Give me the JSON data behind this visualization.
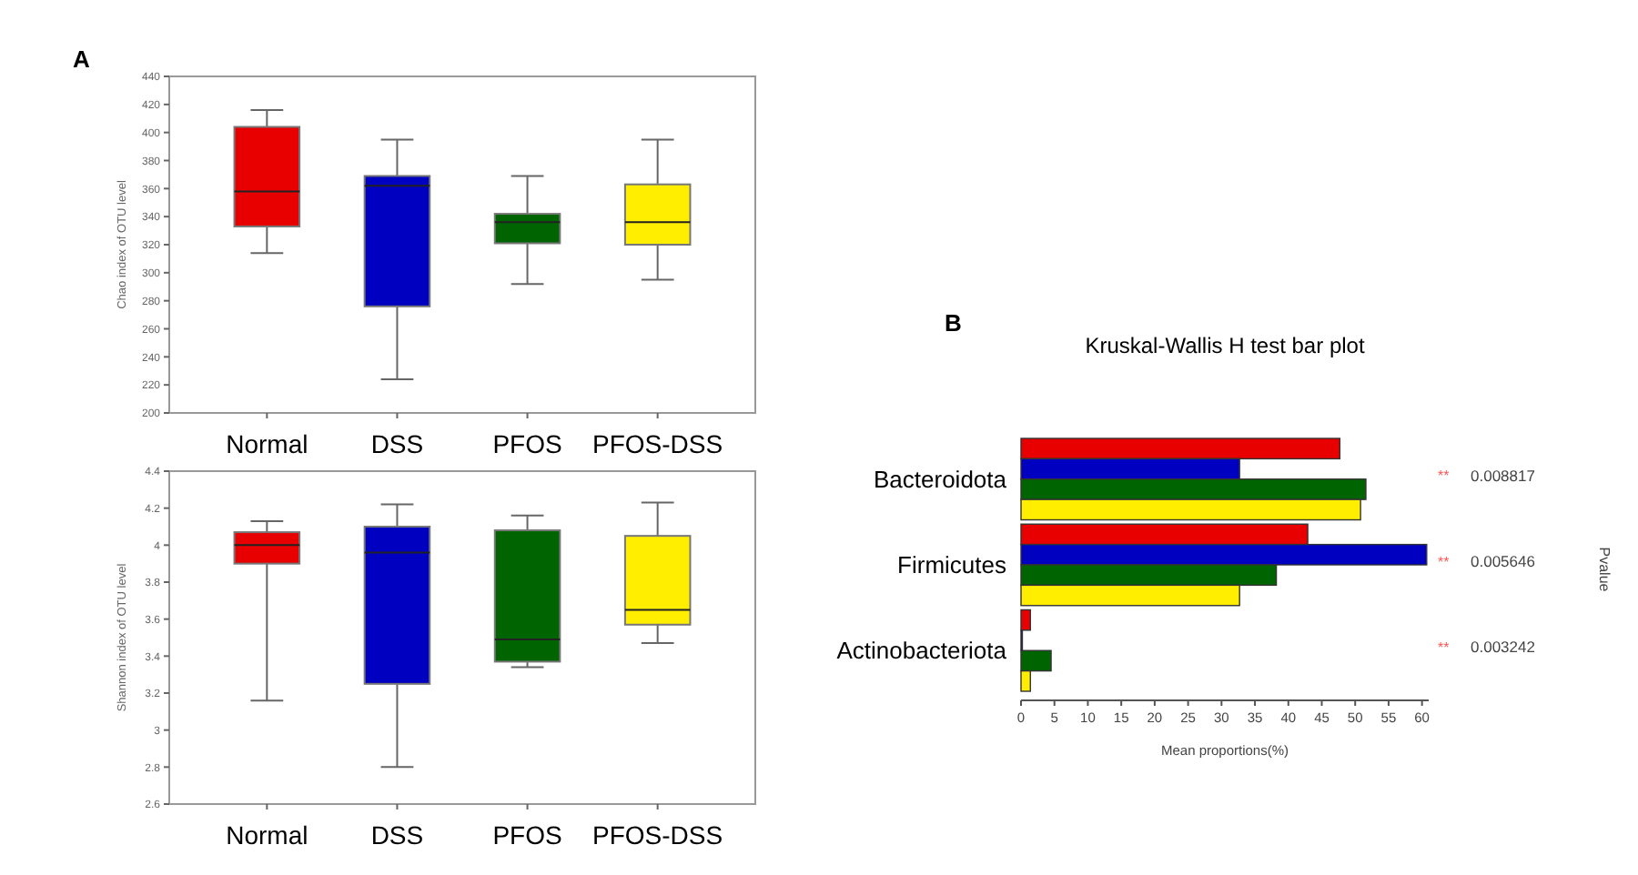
{
  "chart_data": [
    {
      "type": "box",
      "title": "A",
      "ylabel": "Chao index of OTU level",
      "categories": [
        "Normal",
        "DSS",
        "PFOS",
        "PFOS-DSS"
      ],
      "colors": [
        "#e80000",
        "#0000c0",
        "#006400",
        "#ffee00"
      ],
      "boxes": [
        {
          "low": 314,
          "q1": 333,
          "median": 358,
          "q3": 404,
          "high": 416
        },
        {
          "low": 224,
          "q1": 276,
          "median": 362,
          "q3": 369,
          "high": 395
        },
        {
          "low": 292,
          "q1": 321,
          "median": 336,
          "q3": 342,
          "high": 369
        },
        {
          "low": 295,
          "q1": 320,
          "median": 336,
          "q3": 363,
          "high": 395
        }
      ],
      "ylim": [
        200,
        440
      ],
      "yticks": [
        200,
        220,
        240,
        260,
        280,
        300,
        320,
        340,
        360,
        380,
        400,
        420,
        440
      ],
      "grid": false
    },
    {
      "type": "box",
      "ylabel": "Shannon index of OTU level",
      "categories": [
        "Normal",
        "DSS",
        "PFOS",
        "PFOS-DSS"
      ],
      "colors": [
        "#e80000",
        "#0000c0",
        "#006400",
        "#ffee00"
      ],
      "boxes": [
        {
          "low": 3.16,
          "q1": 3.9,
          "median": 4.0,
          "q3": 4.07,
          "high": 4.13
        },
        {
          "low": 2.8,
          "q1": 3.25,
          "median": 3.96,
          "q3": 4.1,
          "high": 4.22
        },
        {
          "low": 3.34,
          "q1": 3.37,
          "median": 3.49,
          "q3": 4.08,
          "high": 4.16
        },
        {
          "low": 3.47,
          "q1": 3.57,
          "median": 3.65,
          "q3": 4.05,
          "high": 4.23
        }
      ],
      "ylim": [
        2.6,
        4.4
      ],
      "yticks": [
        2.6,
        2.8,
        3,
        3.2,
        3.4,
        3.6,
        3.8,
        4,
        4.2,
        4.4
      ],
      "grid": false
    },
    {
      "type": "bar",
      "orientation": "horizontal",
      "title": "Kruskal-Wallis H test bar plot",
      "xlabel": "Mean proportions(%)",
      "y2label": "Pvalue",
      "categories": [
        "Bacteroidota",
        "Firmicutes",
        "Actinobacteriota"
      ],
      "series": [
        {
          "color": "#e80000",
          "values": [
            47.7,
            42.9,
            1.4
          ]
        },
        {
          "color": "#0000c0",
          "values": [
            32.7,
            60.7,
            0.2
          ]
        },
        {
          "color": "#006400",
          "values": [
            51.6,
            38.2,
            4.5
          ]
        },
        {
          "color": "#ffee00",
          "values": [
            50.8,
            32.7,
            1.4
          ]
        }
      ],
      "xlim": [
        0,
        61
      ],
      "xticks": [
        0,
        5,
        10,
        15,
        20,
        25,
        30,
        35,
        40,
        45,
        50,
        55,
        60
      ],
      "annotations": [
        "B",
        "**",
        "0.008817",
        "**",
        "0.005646",
        "**",
        "0.003242"
      ]
    }
  ]
}
